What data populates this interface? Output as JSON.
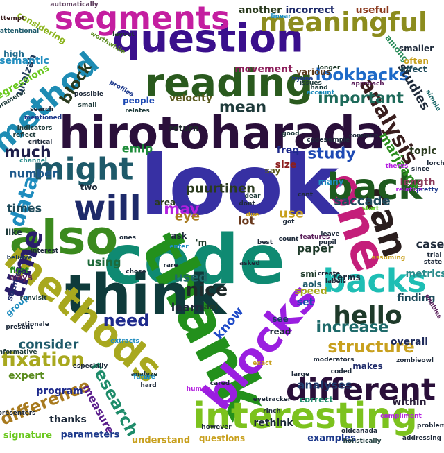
{
  "words": [
    {
      "text": "look",
      "color": "#3730a3"
    },
    {
      "text": "code",
      "color": "#0f8a72"
    },
    {
      "text": "thank",
      "color": "#23901c"
    },
    {
      "text": "think",
      "color": "#0f3b3b"
    },
    {
      "text": "hirotoharada",
      "color": "#2a0f3a"
    },
    {
      "text": "one",
      "color": "#c41e7a"
    },
    {
      "text": "also",
      "color": "#3b8a1e"
    },
    {
      "text": "methods",
      "color": "#a8a81e"
    },
    {
      "text": "blocks",
      "color": "#9a1ee0"
    },
    {
      "text": "question",
      "color": "#3a0f8c"
    },
    {
      "text": "reading",
      "color": "#2a5a1e"
    },
    {
      "text": "segments",
      "color": "#c41ea0"
    },
    {
      "text": "interesting",
      "color": "#7cc21e"
    },
    {
      "text": "different",
      "color": "#2a0f3a"
    },
    {
      "text": "can",
      "color": "#2a1e1e"
    },
    {
      "text": "back",
      "color": "#1e5a1e"
    },
    {
      "text": "backs",
      "color": "#1ebeb4"
    },
    {
      "text": "will",
      "color": "#1e2a6a"
    },
    {
      "text": "might",
      "color": "#1e5a6a"
    },
    {
      "text": "method",
      "color": "#1e8cb4"
    },
    {
      "text": "meaningful",
      "color": "#8c8c1e"
    },
    {
      "text": "time",
      "color": "#2a1e6a"
    },
    {
      "text": "data",
      "color": "#1e8cbe"
    },
    {
      "text": "hello",
      "color": "#1e3a2a"
    },
    {
      "text": "analysis",
      "color": "#3a1e1e"
    },
    {
      "text": "lookbacks",
      "color": "#1e6ac8"
    },
    {
      "text": "important",
      "color": "#1e6a5a"
    },
    {
      "text": "fixation",
      "color": "#a8a81e"
    },
    {
      "text": "structure",
      "color": "#c8a01e"
    },
    {
      "text": "research",
      "color": "#1e8c6a"
    },
    {
      "text": "nice",
      "color": "#1e2a2a"
    },
    {
      "text": "need",
      "color": "#1e2a8c"
    },
    {
      "text": "increase",
      "color": "#1e6a6a"
    },
    {
      "text": "difference",
      "color": "#a87a1e"
    },
    {
      "text": "study",
      "color": "#1e4ab4"
    },
    {
      "text": "may",
      "color": "#b41ee0"
    },
    {
      "text": "mean",
      "color": "#1e3a3a"
    },
    {
      "text": "block",
      "color": "#2a3a1e"
    },
    {
      "text": "much",
      "color": "#1e1e4a"
    },
    {
      "text": "puurtinen",
      "color": "#2a3a1e"
    },
    {
      "text": "studies",
      "color": "#1e2a3a"
    },
    {
      "text": "marjaana",
      "color": "#2a8c1e"
    },
    {
      "text": "saccade",
      "color": "#1e4a5a"
    },
    {
      "text": "know",
      "color": "#1e4ac8"
    },
    {
      "text": "consider",
      "color": "#1e5a6a"
    },
    {
      "text": "analyses",
      "color": "#1e3a6a"
    },
    {
      "text": "measure",
      "color": "#5a1e8c"
    },
    {
      "text": "learn",
      "color": "#1e2a3a"
    },
    {
      "text": "velocity",
      "color": "#5a5a1e"
    },
    {
      "text": "movement",
      "color": "#8c1e5a"
    },
    {
      "text": "number",
      "color": "#1e5a8c"
    },
    {
      "text": "times",
      "color": "#1e4a5a"
    },
    {
      "text": "emip",
      "color": "#1e8c3a"
    },
    {
      "text": "eye",
      "color": "#a87a1e"
    },
    {
      "text": "used",
      "color": "#1e6a6a"
    },
    {
      "text": "using",
      "color": "#1e6a3a"
    },
    {
      "text": "lot",
      "color": "#6a3a1e"
    },
    {
      "text": "use",
      "color": "#c8a01e"
    },
    {
      "text": "paper",
      "color": "#1e3a2a"
    },
    {
      "text": "case",
      "color": "#1e2a3a"
    },
    {
      "text": "metrics",
      "color": "#2a8c8c"
    },
    {
      "text": "topic",
      "color": "#2a3a1e"
    },
    {
      "text": "length",
      "color": "#8c3a5a"
    },
    {
      "text": "freq",
      "color": "#1e2a8c"
    },
    {
      "text": "size",
      "color": "#8c1e1e"
    },
    {
      "text": "return",
      "color": "#1e2a2a"
    },
    {
      "text": "incorrect",
      "color": "#1e2a6a"
    },
    {
      "text": "another",
      "color": "#2a3a1e"
    },
    {
      "text": "useful",
      "color": "#8c3a1e"
    },
    {
      "text": "expert",
      "color": "#5a8c1e"
    },
    {
      "text": "speed",
      "color": "#a8a81e"
    },
    {
      "text": "set",
      "color": "#1e4ab4"
    },
    {
      "text": "program",
      "color": "#1e2a8c"
    },
    {
      "text": "thanks",
      "color": "#1e2a3a"
    },
    {
      "text": "parameters",
      "color": "#1e3a8c"
    },
    {
      "text": "signature",
      "color": "#6ac81e"
    },
    {
      "text": "understand",
      "color": "#c8a01e"
    },
    {
      "text": "questions",
      "color": "#c8a01e"
    },
    {
      "text": "rethink",
      "color": "#1e2a3a"
    },
    {
      "text": "examples",
      "color": "#1e3a8c"
    },
    {
      "text": "correct",
      "color": "#1e8c6a"
    },
    {
      "text": "within",
      "color": "#2a1e3a"
    },
    {
      "text": "makes",
      "color": "#1e2a6a"
    },
    {
      "text": "overall",
      "color": "#1e2a5a"
    },
    {
      "text": "finding",
      "color": "#1e4a5a"
    },
    {
      "text": "terms",
      "color": "#1e2a3a"
    },
    {
      "text": "smi",
      "color": "#1e3a2a"
    },
    {
      "text": "aois",
      "color": "#1e5a6a"
    },
    {
      "text": "aoi",
      "color": "#1e3a2a"
    },
    {
      "text": "ask",
      "color": "#1e2a3a"
    },
    {
      "text": "'m",
      "color": "#1e3a2a"
    },
    {
      "text": "area",
      "color": "#2a3a1e"
    },
    {
      "text": "source",
      "color": "#1e2a6a"
    },
    {
      "text": "people",
      "color": "#1e4ab4"
    },
    {
      "text": "unaizah",
      "color": "#1e3a5a"
    },
    {
      "text": "semantic",
      "color": "#1e8cbe"
    },
    {
      "text": "regressions",
      "color": "#6ac81e"
    },
    {
      "text": "considering",
      "color": "#8cb41e"
    },
    {
      "text": "high",
      "color": "#1e6a8c"
    },
    {
      "text": "various",
      "color": "#5a3a1e"
    },
    {
      "text": "smaller",
      "color": "#1e2a3a"
    },
    {
      "text": "among",
      "color": "#2a8c5a"
    },
    {
      "text": "often",
      "color": "#c8a01e"
    },
    {
      "text": "affect",
      "color": "#1e4a5a"
    },
    {
      "text": "like",
      "color": "#1e3a3a"
    },
    {
      "text": "first",
      "color": "#2a8c1e"
    },
    {
      "text": "ways",
      "color": "#5a1e5a"
    },
    {
      "text": "two",
      "color": "#1e2a3a"
    },
    {
      "text": "group",
      "color": "#1e8cbe"
    },
    {
      "text": "see",
      "color": "#1e3a6a"
    },
    {
      "text": "read",
      "color": "#1e2a3a"
    },
    {
      "text": "say",
      "color": "#5a5a1e"
    },
    {
      "text": "many",
      "color": "#1e8cbe"
    },
    {
      "text": "automatically",
      "color": "#5a3a5a"
    },
    {
      "text": "attempt",
      "color": "#3a1e1e"
    },
    {
      "text": "attentional",
      "color": "#1e5a6a"
    },
    {
      "text": "layout",
      "color": "#1e3a2a"
    },
    {
      "text": "worthwhile",
      "color": "#5a8c1e"
    },
    {
      "text": "linear",
      "color": "#1e8cbe"
    },
    {
      "text": "longer",
      "color": "#1e3a2a"
    },
    {
      "text": "hyönä",
      "color": "#1e3a8c"
    },
    {
      "text": "issues",
      "color": "#1e3a3a"
    },
    {
      "text": "hand",
      "color": "#1e3a3a"
    },
    {
      "text": "account",
      "color": "#1e8cbe"
    },
    {
      "text": "approach",
      "color": "#5a1e5a"
    },
    {
      "text": "simple",
      "color": "#1e6a6a"
    },
    {
      "text": "possible",
      "color": "#1e2a3a"
    },
    {
      "text": "profiles",
      "color": "#1e3a8c"
    },
    {
      "text": "relates",
      "color": "#1e3a3a"
    },
    {
      "text": "small",
      "color": "#1e3a3a"
    },
    {
      "text": "search",
      "color": "#1e2a3a"
    },
    {
      "text": "mentioned",
      "color": "#1e3a8c"
    },
    {
      "text": "parameter",
      "color": "#1e3a3a"
    },
    {
      "text": "indicators",
      "color": "#1e3a3a"
    },
    {
      "text": "reflect",
      "color": "#1e3a3a"
    },
    {
      "text": "critical",
      "color": "#1e2a3a"
    },
    {
      "text": "channel",
      "color": "#2a8c8c"
    },
    {
      "text": "good",
      "color": "#1e3a3a"
    },
    {
      "text": "codes",
      "color": "#1e2a3a"
    },
    {
      "text": "sample",
      "color": "#1e2a3a"
    },
    {
      "text": "common",
      "color": "#1e2a3a"
    },
    {
      "text": "theres",
      "color": "#b41ee0"
    },
    {
      "text": "since",
      "color": "#1e2a3a"
    },
    {
      "text": "lorch",
      "color": "#1e2a3a"
    },
    {
      "text": "relative",
      "color": "#b41ee0"
    },
    {
      "text": "pretty",
      "color": "#1e3a8c"
    },
    {
      "text": "start",
      "color": "#5ac81e"
    },
    {
      "text": "cant",
      "color": "#1e2a3a"
    },
    {
      "text": "dear",
      "color": "#1e3a3a"
    },
    {
      "text": "dont",
      "color": "#1e2a3a"
    },
    {
      "text": "due",
      "color": "#c8a01e"
    },
    {
      "text": "got",
      "color": "#1e2a3a"
    },
    {
      "text": "leave",
      "color": "#1e2a3a"
    },
    {
      "text": "pupil",
      "color": "#1e2a3a"
    },
    {
      "text": "trial",
      "color": "#1e2a3a"
    },
    {
      "text": "state",
      "color": "#1e2a3a"
    },
    {
      "text": "enter",
      "color": "#1e8cbe"
    },
    {
      "text": "interest",
      "color": "#1e2a3a"
    },
    {
      "text": "ones",
      "color": "#1e2a3a"
    },
    {
      "text": "believe",
      "color": "#1e3a5a"
    },
    {
      "text": "rare",
      "color": "#1e2a3a"
    },
    {
      "text": "asked",
      "color": "#1e2a3a"
    },
    {
      "text": "best",
      "color": "#1e2a3a"
    },
    {
      "text": "count",
      "color": "#1e2a3a"
    },
    {
      "text": "features",
      "color": "#5a1e5a"
    },
    {
      "text": "assuming",
      "color": "#c8a01e"
    },
    {
      "text": "present",
      "color": "#1e2a3a"
    },
    {
      "text": "chose",
      "color": "#1e2a3a"
    },
    {
      "text": "runvisit",
      "color": "#1e3a3a"
    },
    {
      "text": "rationale",
      "color": "#1e2a3a"
    },
    {
      "text": "create",
      "color": "#1e2a3a"
    },
    {
      "text": "labels",
      "color": "#1e2a3a"
    },
    {
      "text": "enables",
      "color": "#5a1e5a"
    },
    {
      "text": "extracts",
      "color": "#1e8cbe"
    },
    {
      "text": "informative",
      "color": "#1e3a3a"
    },
    {
      "text": "analyze",
      "color": "#1e3a3a"
    },
    {
      "text": "future",
      "color": "#1e8cbe"
    },
    {
      "text": "hard",
      "color": "#1e2a3a"
    },
    {
      "text": "exact",
      "color": "#c8a01e"
    },
    {
      "text": "moderators",
      "color": "#1e2a3a"
    },
    {
      "text": "coded",
      "color": "#1e2a3a"
    },
    {
      "text": "large",
      "color": "#1e2a3a"
    },
    {
      "text": "zombieowl",
      "color": "#1e2a3a"
    },
    {
      "text": "presenters",
      "color": "#1e2a3a"
    },
    {
      "text": "especially",
      "color": "#1e2a3a"
    },
    {
      "text": "cared",
      "color": "#1e2a3a"
    },
    {
      "text": "human",
      "color": "#b41ee0"
    },
    {
      "text": "however",
      "color": "#1e2a3a"
    },
    {
      "text": "eyetracker",
      "color": "#1e2a3a"
    },
    {
      "text": "rinch",
      "color": "#1e2a3a"
    },
    {
      "text": "compliment",
      "color": "#b41ee0"
    },
    {
      "text": "oldcanada",
      "color": "#1e2a3a"
    },
    {
      "text": "holistically",
      "color": "#1e3a3a"
    },
    {
      "text": "problem",
      "color": "#1e2a3a"
    },
    {
      "text": "addressing",
      "color": "#1e2a3a"
    }
  ]
}
